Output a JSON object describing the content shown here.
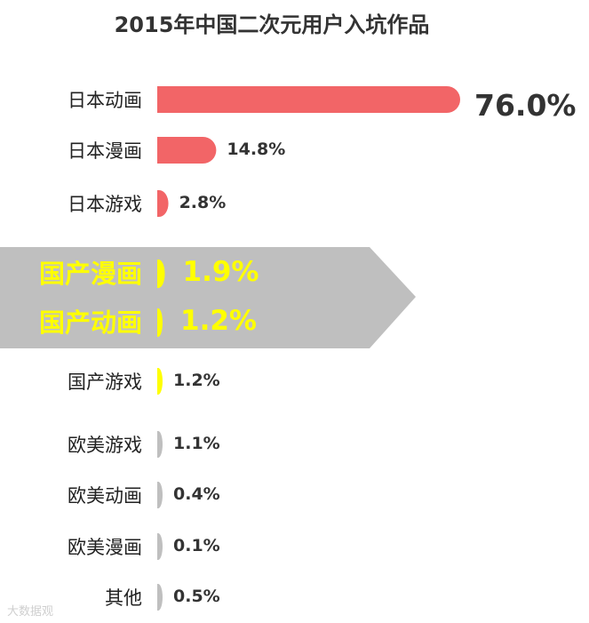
{
  "chart_data": {
    "type": "bar",
    "orientation": "horizontal",
    "title": "2015年中国二次元用户入坑作品",
    "unit": "%",
    "categories": [
      "日本动画",
      "日本漫画",
      "日本游戏",
      "国产漫画",
      "国产动画",
      "国产游戏",
      "欧美游戏",
      "欧美动画",
      "欧美漫画",
      "其他"
    ],
    "values": [
      76.0,
      14.8,
      2.8,
      1.9,
      1.2,
      1.2,
      1.1,
      0.4,
      0.1,
      0.5
    ],
    "value_labels": [
      "76.0%",
      "14.8%",
      "2.8%",
      "1.9%",
      "1.2%",
      "1.2%",
      "1.1%",
      "0.4%",
      "0.1%",
      "0.5%"
    ],
    "bar_colors": [
      "#f26567",
      "#f26567",
      "#f26567",
      "#ffff00",
      "#ffff00",
      "#ffff00",
      "#bfbfbf",
      "#bfbfbf",
      "#bfbfbf",
      "#bfbfbf"
    ],
    "highlighted": [
      "国产漫画",
      "国产动画"
    ],
    "highlight_color": "#bfbfbf",
    "legend": "none",
    "grid": false
  },
  "watermark": "大数据观"
}
